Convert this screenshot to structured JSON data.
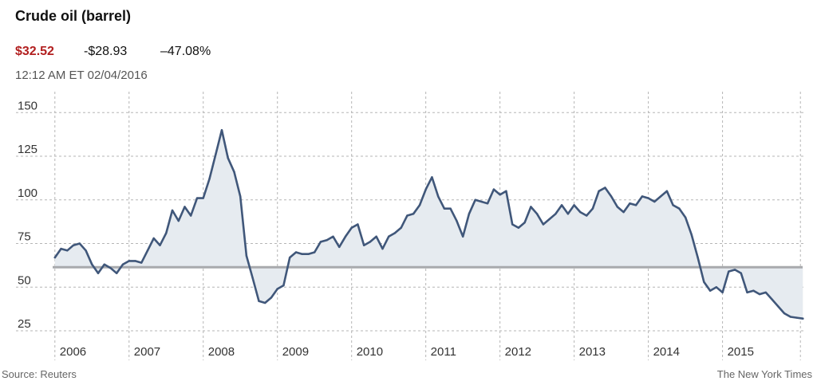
{
  "header": {
    "title": "Crude oil (barrel)",
    "price": "$32.52",
    "change": "-$28.93",
    "change_pct": "–47.08%",
    "timestamp": "12:12 AM ET  02/04/2016"
  },
  "footer": {
    "source": "Source: Reuters",
    "credit": "The New York Times"
  },
  "colors": {
    "line": "#40577a",
    "fill": "#e6ebf0",
    "baseline": "#a8aaad",
    "grid": "#b5b5b5",
    "price": "#b21f1f"
  },
  "chart_data": {
    "type": "area",
    "title": "Crude oil (barrel)",
    "xlabel": "",
    "ylabel": "",
    "ylim": [
      20,
      162
    ],
    "xlim": [
      2005.97,
      2016.08
    ],
    "y_ticks": [
      25,
      50,
      75,
      100,
      125,
      150
    ],
    "y_tick_labels": [
      "25",
      "50",
      "75",
      "100",
      "125",
      "150"
    ],
    "x_ticks": [
      2006,
      2007,
      2008,
      2009,
      2010,
      2011,
      2012,
      2013,
      2014,
      2015
    ],
    "x_tick_labels": [
      "2006",
      "2007",
      "2008",
      "2009",
      "2010",
      "2011",
      "2012",
      "2013",
      "2014",
      "2015"
    ],
    "reference_value": 61.45,
    "grid": true,
    "series": [
      {
        "x": [
          2006.0,
          2006.083,
          2006.167,
          2006.25,
          2006.333,
          2006.417,
          2006.5,
          2006.583,
          2006.667,
          2006.75,
          2006.833,
          2006.917,
          2007.0,
          2007.083,
          2007.167,
          2007.25,
          2007.333,
          2007.417,
          2007.5,
          2007.583,
          2007.667,
          2007.75,
          2007.833,
          2007.917,
          2008.0,
          2008.083,
          2008.167,
          2008.25,
          2008.333,
          2008.417,
          2008.5,
          2008.583,
          2008.667,
          2008.75,
          2008.833,
          2008.917,
          2009.0,
          2009.083,
          2009.167,
          2009.25,
          2009.333,
          2009.417,
          2009.5,
          2009.583,
          2009.667,
          2009.75,
          2009.833,
          2009.917,
          2010.0,
          2010.083,
          2010.167,
          2010.25,
          2010.333,
          2010.417,
          2010.5,
          2010.583,
          2010.667,
          2010.75,
          2010.833,
          2010.917,
          2011.0,
          2011.083,
          2011.167,
          2011.25,
          2011.333,
          2011.417,
          2011.5,
          2011.583,
          2011.667,
          2011.75,
          2011.833,
          2011.917,
          2012.0,
          2012.083,
          2012.167,
          2012.25,
          2012.333,
          2012.417,
          2012.5,
          2012.583,
          2012.667,
          2012.75,
          2012.833,
          2012.917,
          2013.0,
          2013.083,
          2013.167,
          2013.25,
          2013.333,
          2013.417,
          2013.5,
          2013.583,
          2013.667,
          2013.75,
          2013.833,
          2013.917,
          2014.0,
          2014.083,
          2014.167,
          2014.25,
          2014.333,
          2014.417,
          2014.5,
          2014.583,
          2014.667,
          2014.75,
          2014.833,
          2014.917,
          2015.0,
          2015.083,
          2015.167,
          2015.25,
          2015.333,
          2015.417,
          2015.5,
          2015.583,
          2015.667,
          2015.75,
          2015.833,
          2015.917,
          2016.0,
          2016.083
        ],
        "values": [
          67,
          72,
          71,
          74,
          75,
          71,
          63,
          58,
          63,
          61,
          58,
          63,
          65,
          65,
          64,
          71,
          78,
          74,
          81,
          94,
          88,
          96,
          91,
          101,
          101,
          112,
          126,
          140,
          124,
          116,
          102,
          68,
          55,
          42,
          41,
          44,
          49,
          51,
          67,
          70,
          69,
          69,
          70,
          76,
          77,
          79,
          73,
          79,
          84,
          86,
          74,
          76,
          79,
          72,
          79,
          81,
          84,
          91,
          92,
          97,
          106,
          113,
          102,
          95,
          95,
          88,
          79,
          92,
          100,
          99,
          98,
          106,
          103,
          105,
          86,
          84,
          87,
          96,
          92,
          86,
          89,
          92,
          97,
          92,
          97,
          93,
          91,
          95,
          105,
          107,
          102,
          96,
          93,
          98,
          97,
          102,
          101,
          99,
          102,
          105,
          97,
          95,
          90,
          80,
          67,
          53,
          48,
          50,
          47,
          59,
          60,
          58,
          47,
          48,
          46,
          47,
          43,
          39,
          35,
          33,
          32.5,
          32
        ]
      }
    ]
  }
}
